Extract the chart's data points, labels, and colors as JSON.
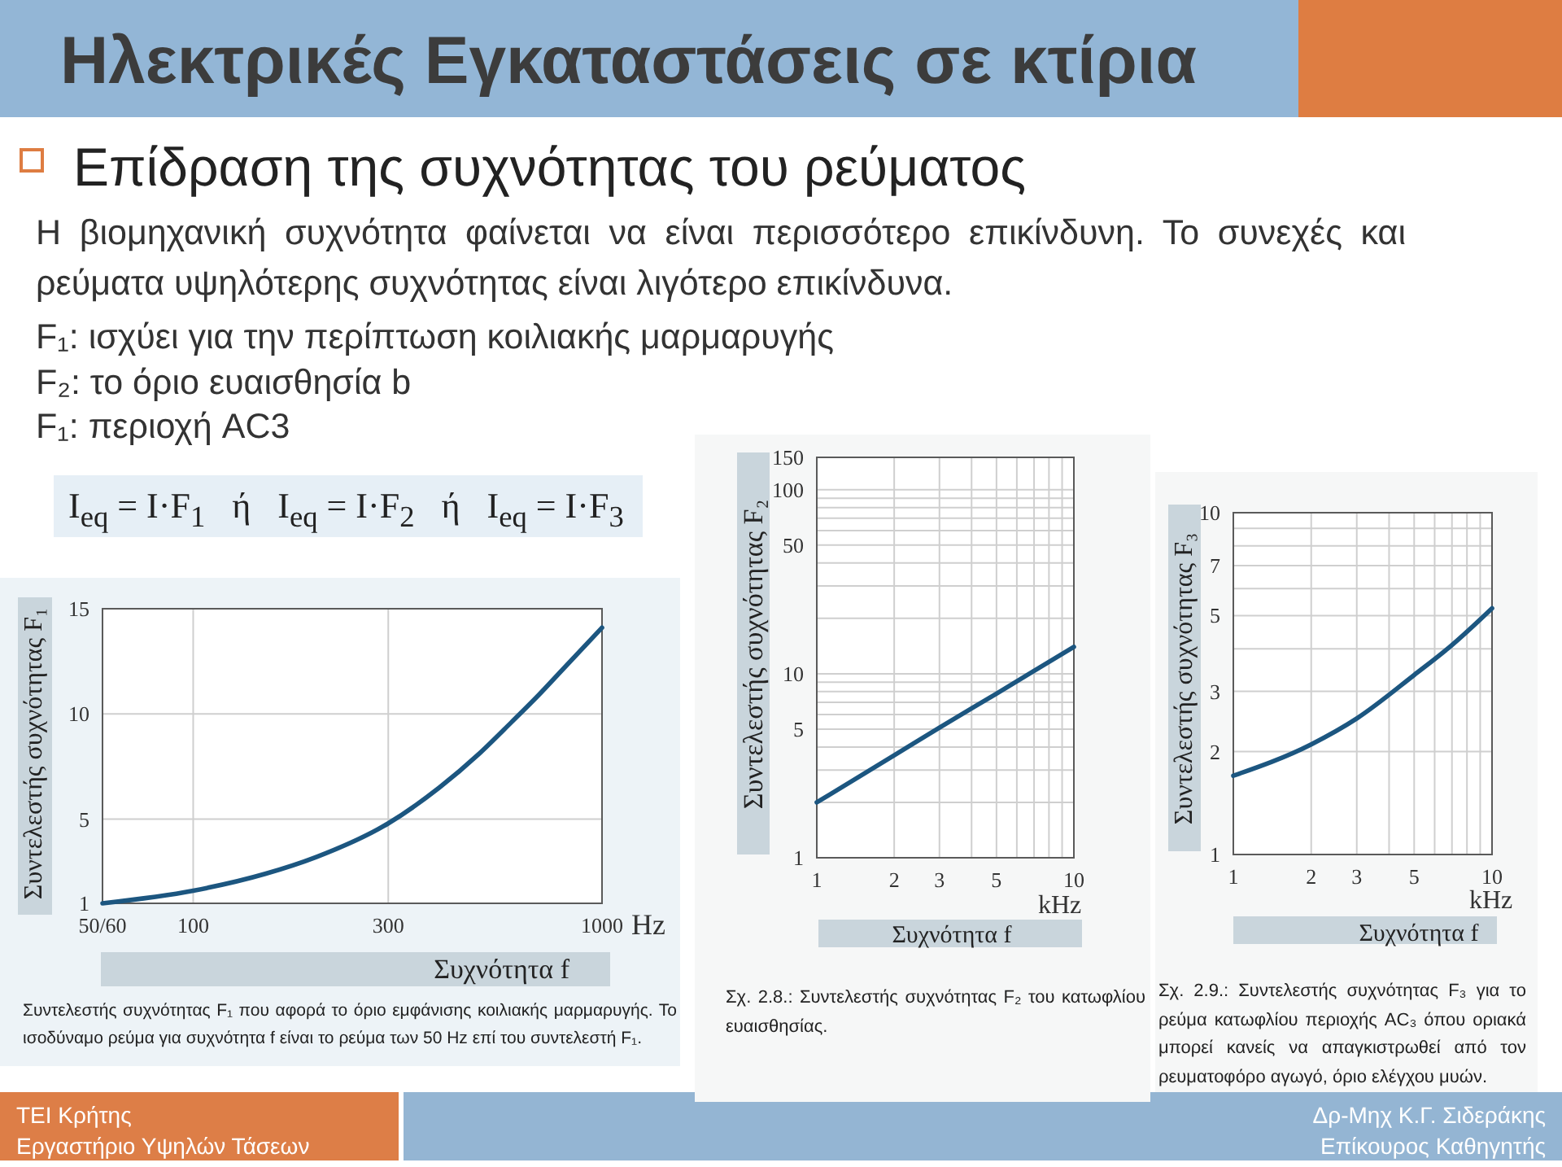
{
  "chart_data": [
    {
      "type": "other",
      "title": "Ηλεκτρικές Εγκαταστάσεις σε κτίρια",
      "subtitle": "Επίδραση της συχνότητας του ρεύματος",
      "annotations": [
        "Η βιομηχανική συχνότητα φαίνεται να είναι περισσότερο επικίνδυνη. Το συνεχές και ρεύματα υψηλότερης συχνότητας είναι λιγότερο επικίνδυνα.",
        "F₁: ισχύει για την περίπτωση κοιλιακής μαρμαρυγής",
        "F₂: το όριο ευαισθησία b",
        "F₁: περιοχή AC3",
        "I$_{eq}$ = I·F$_{1}$   ή   I$_{eq}$ = I·F$_{2}$   ή   I$_{eq}$ = I·F$_{3}$",
        "TEI Κρήτης",
        "Εργαστήριο Υψηλών Τάσεων",
        "Δρ-Μηχ Κ.Γ. Σιδεράκης",
        "Επίκουρος Καθηγητής"
      ]
    },
    {
      "type": "line",
      "xlabel": "Συχνότητα f",
      "ylabel": "Συντελεστής συχνότητας F₁",
      "annotations": [
        "Hz",
        "Συντελεστής συχνότητας F₁ που αφορά το όριο εμφάνισης κοιλιακής μαρμαρυγής. Το ισοδύναμο ρεύμα για συχνότητα f είναι το ρεύμα των 50 Hz επί του συντελεστή F₁."
      ],
      "x": [
        60,
        100,
        150,
        200,
        300,
        400,
        500,
        600,
        700,
        800,
        1000
      ],
      "values": [
        1.0,
        1.6,
        2.4,
        3.2,
        4.8,
        6.5,
        8.1,
        9.6,
        10.9,
        12.1,
        14.1
      ],
      "color": "#1c5680",
      "log": "x",
      "xlim": [
        60,
        1000
      ],
      "xticks": [
        {
          "value": 60,
          "label": "50/60"
        },
        100,
        300,
        1000
      ],
      "ylim": [
        1,
        15
      ],
      "yticks": [
        1,
        5,
        10,
        15
      ],
      "grid": true
    },
    {
      "type": "line",
      "xlabel": "Συχνότητα f",
      "ylabel": "Συντελεστής συχνότητας F₂",
      "annotations": [
        "kHz",
        "Σχ. 2.8.: Συντελεστής συχνότητας F₂ του κατωφλίου ευαισθησίας."
      ],
      "x": [
        1,
        2,
        3,
        5,
        10
      ],
      "values": [
        2.0,
        3.6,
        5.1,
        7.8,
        14
      ],
      "color": "#1c5680",
      "log": "xy",
      "xlim": [
        1,
        10
      ],
      "xticks": [
        1,
        2,
        3,
        {
          "value": 4,
          "label": null
        },
        5,
        {
          "value": 6,
          "label": null
        },
        {
          "value": 7,
          "label": null
        },
        {
          "value": 8,
          "label": null
        },
        {
          "value": 9,
          "label": null
        },
        10
      ],
      "ylim": [
        1,
        150
      ],
      "yticks": [
        1,
        {
          "value": 2,
          "label": null
        },
        {
          "value": 3,
          "label": null
        },
        {
          "value": 4,
          "label": null
        },
        5,
        {
          "value": 6,
          "label": null
        },
        {
          "value": 7,
          "label": null
        },
        {
          "value": 8,
          "label": null
        },
        {
          "value": 9,
          "label": null
        },
        10,
        {
          "value": 20,
          "label": null
        },
        {
          "value": 30,
          "label": null
        },
        {
          "value": 40,
          "label": null
        },
        50,
        {
          "value": 60,
          "label": null
        },
        {
          "value": 70,
          "label": null
        },
        {
          "value": 80,
          "label": null
        },
        {
          "value": 90,
          "label": null
        },
        100,
        150
      ],
      "grid": true
    },
    {
      "type": "line",
      "xlabel": "Συχνότητα f",
      "ylabel": "Συντελεστής συχνότητας F₃",
      "annotations": [
        "kHz",
        "Σχ. 2.9.: Συντελεστής συχνότητας F₃ για το ρεύμα κατωφλίου περιοχής AC₃ όπου οριακά μπορεί κανείς να απαγκιστρωθεί από τον ρευματοφόρο αγωγό, όριο ελέγχου μυών."
      ],
      "x": [
        1,
        2,
        3,
        5,
        7,
        10
      ],
      "values": [
        1.7,
        2.1,
        2.5,
        3.35,
        4.1,
        5.25
      ],
      "color": "#1c5680",
      "log": "xy",
      "xlim": [
        1,
        10
      ],
      "xticks": [
        1,
        2,
        3,
        {
          "value": 4,
          "label": null
        },
        5,
        {
          "value": 6,
          "label": null
        },
        {
          "value": 7,
          "label": null
        },
        {
          "value": 8,
          "label": null
        },
        {
          "value": 9,
          "label": null
        },
        10
      ],
      "ylim": [
        1,
        10
      ],
      "yticks": [
        1,
        2,
        3,
        {
          "value": 4,
          "label": null
        },
        5,
        {
          "value": 6,
          "label": null
        },
        7,
        {
          "value": 8,
          "label": null
        },
        {
          "value": 9,
          "label": null
        },
        10
      ],
      "grid": true
    }
  ]
}
